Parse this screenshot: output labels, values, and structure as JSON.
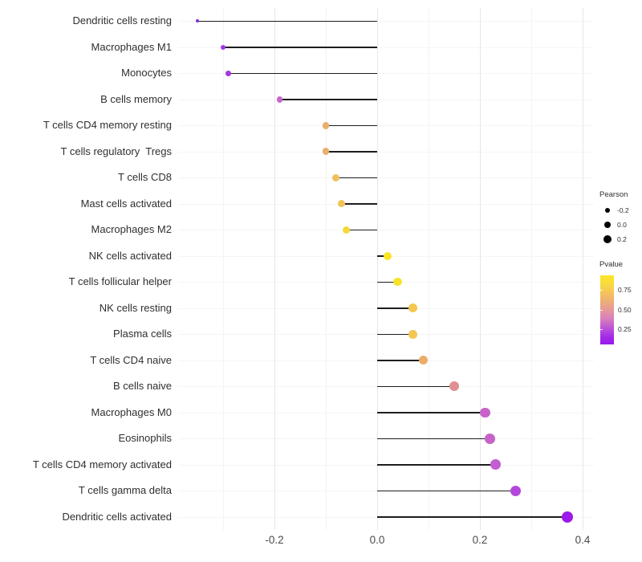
{
  "chart_data": {
    "type": "lollipop",
    "orientation": "horizontal",
    "title": "",
    "xlabel": "",
    "ylabel": "",
    "baseline": 0.0,
    "xlim": [
      -0.3875,
      0.4219
    ],
    "x_major_ticks": [
      -0.2,
      0.0,
      0.2,
      0.4
    ],
    "x_tick_labels": [
      "-0.2",
      "0.0",
      "0.2",
      "0.4"
    ],
    "x_minor_ticks": [
      -0.3,
      -0.1,
      0.1,
      0.3
    ],
    "grid": "vertical major+minor, faint horizontal per row",
    "line_color": "#1d1d1d",
    "categories": [
      "Dendritic cells resting",
      "Macrophages M1",
      "Monocytes",
      "B cells memory",
      "T cells CD4 memory resting",
      "T cells regulatory  Tregs",
      "T cells CD8",
      "Mast cells activated",
      "Macrophages M2",
      "NK cells activated",
      "T cells follicular helper",
      "NK cells resting",
      "Plasma cells",
      "T cells CD4 naive",
      "B cells naive",
      "Macrophages M0",
      "Eosinophils",
      "T cells CD4 memory activated",
      "T cells gamma delta",
      "Dendritic cells activated"
    ],
    "series": [
      {
        "name": "Pearson correlation",
        "values": [
          -0.35,
          -0.3,
          -0.29,
          -0.19,
          -0.1,
          -0.1,
          -0.08,
          -0.07,
          -0.06,
          0.02,
          0.04,
          0.07,
          0.07,
          0.09,
          0.15,
          0.21,
          0.22,
          0.23,
          0.27,
          0.37
        ]
      }
    ],
    "point_colors": [
      "#8729d4",
      "#a23ae2",
      "#a23ade",
      "#c767c9",
      "#eaaf6b",
      "#eaaf6b",
      "#efc15b",
      "#f0c457",
      "#f5d83b",
      "#f9e522",
      "#f8e32a",
      "#f2c84f",
      "#f2c651",
      "#ecac68",
      "#df9092",
      "#c862c7",
      "#c763c8",
      "#c25ed1",
      "#b447db",
      "#9b19e9"
    ]
  },
  "legend": {
    "size_legend": {
      "title": "Pearson",
      "dot_color": "#000000",
      "entries": [
        {
          "label": "-0.2"
        },
        {
          "label": "0.0"
        },
        {
          "label": "0.2"
        }
      ]
    },
    "color_legend": {
      "title": "Pvalue",
      "tick_labels": [
        "0.75",
        "0.50",
        "0.25"
      ],
      "range": [
        0.05,
        0.94
      ],
      "gradient_top_color": "#fce724",
      "gradient_mid_color": "#e89c92",
      "gradient_bottom_color": "#9816ec"
    }
  }
}
